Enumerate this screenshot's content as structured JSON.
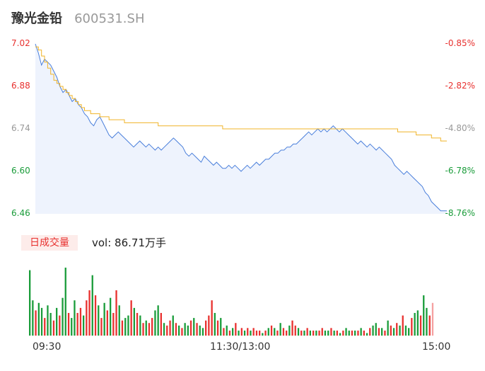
{
  "header": {
    "name": "豫光金铅",
    "code": "600531.SH"
  },
  "volume_tag": "日成交量",
  "volume_text": "vol: 86.71万手",
  "colors": {
    "up": "#e8312f",
    "down": "#1a9c3a",
    "flat": "#999999",
    "price_line": "#4a7fdb",
    "avg_line": "#f0b429",
    "price_fill": "#eef3fd"
  },
  "chart_data": [
    {
      "type": "line",
      "title": "",
      "y_left_ticks": [
        "7.02",
        "6.88",
        "6.74",
        "6.60",
        "6.46"
      ],
      "y_right_ticks": [
        "-0.85%",
        "-2.82%",
        "-4.80%",
        "-6.78%",
        "-8.76%"
      ],
      "ylim": [
        6.46,
        7.02
      ],
      "x_ticks": [
        "09:30",
        "11:30/13:00",
        "15:00"
      ],
      "series": [
        {
          "values": [
            7.02,
            6.99,
            6.95,
            6.97,
            6.96,
            6.95,
            6.93,
            6.91,
            6.88,
            6.86,
            6.87,
            6.85,
            6.83,
            6.84,
            6.82,
            6.81,
            6.79,
            6.78,
            6.76,
            6.75,
            6.77,
            6.78,
            6.76,
            6.74,
            6.72,
            6.71,
            6.72,
            6.73,
            6.72,
            6.71,
            6.7,
            6.69,
            6.68,
            6.69,
            6.7,
            6.69,
            6.68,
            6.69,
            6.68,
            6.67,
            6.68,
            6.67,
            6.68,
            6.69,
            6.7,
            6.71,
            6.7,
            6.69,
            6.68,
            6.66,
            6.65,
            6.66,
            6.65,
            6.64,
            6.63,
            6.65,
            6.64,
            6.63,
            6.62,
            6.63,
            6.62,
            6.61,
            6.61,
            6.62,
            6.61,
            6.62,
            6.61,
            6.6,
            6.61,
            6.62,
            6.61,
            6.62,
            6.63,
            6.62,
            6.63,
            6.64,
            6.64,
            6.65,
            6.66,
            6.66,
            6.67,
            6.67,
            6.68,
            6.68,
            6.69,
            6.69,
            6.7,
            6.71,
            6.72,
            6.73,
            6.72,
            6.73,
            6.74,
            6.73,
            6.74,
            6.73,
            6.74,
            6.75,
            6.74,
            6.73,
            6.74,
            6.73,
            6.72,
            6.71,
            6.7,
            6.69,
            6.7,
            6.69,
            6.68,
            6.69,
            6.68,
            6.67,
            6.68,
            6.67,
            6.66,
            6.65,
            6.64,
            6.62,
            6.61,
            6.6,
            6.59,
            6.6,
            6.59,
            6.58,
            6.57,
            6.56,
            6.55,
            6.53,
            6.52,
            6.5,
            6.49,
            6.48,
            6.47,
            6.47,
            6.47
          ]
        },
        {
          "values": [
            7.01,
            7.0,
            6.98,
            6.96,
            6.94,
            6.92,
            6.9,
            6.89,
            6.88,
            6.87,
            6.86,
            6.85,
            6.84,
            6.83,
            6.82,
            6.81,
            6.8,
            6.8,
            6.79,
            6.79,
            6.79,
            6.78,
            6.78,
            6.78,
            6.77,
            6.77,
            6.77,
            6.77,
            6.77,
            6.76,
            6.76,
            6.76,
            6.76,
            6.76,
            6.76,
            6.76,
            6.76,
            6.76,
            6.76,
            6.76,
            6.75,
            6.75,
            6.75,
            6.75,
            6.75,
            6.75,
            6.75,
            6.75,
            6.75,
            6.75,
            6.75,
            6.75,
            6.75,
            6.75,
            6.75,
            6.75,
            6.75,
            6.75,
            6.75,
            6.75,
            6.75,
            6.74,
            6.74,
            6.74,
            6.74,
            6.74,
            6.74,
            6.74,
            6.74,
            6.74,
            6.74,
            6.74,
            6.74,
            6.74,
            6.74,
            6.74,
            6.74,
            6.74,
            6.74,
            6.74,
            6.74,
            6.74,
            6.74,
            6.74,
            6.74,
            6.74,
            6.74,
            6.74,
            6.74,
            6.74,
            6.74,
            6.74,
            6.74,
            6.74,
            6.74,
            6.74,
            6.74,
            6.74,
            6.74,
            6.74,
            6.74,
            6.74,
            6.74,
            6.74,
            6.74,
            6.74,
            6.74,
            6.74,
            6.74,
            6.74,
            6.74,
            6.74,
            6.74,
            6.74,
            6.74,
            6.74,
            6.74,
            6.74,
            6.73,
            6.73,
            6.73,
            6.73,
            6.73,
            6.73,
            6.72,
            6.72,
            6.72,
            6.72,
            6.72,
            6.71,
            6.71,
            6.71,
            6.7,
            6.7,
            6.7
          ]
        }
      ]
    },
    {
      "type": "bar",
      "title": "",
      "values": [
        2.6,
        1.4,
        1.0,
        1.3,
        1.1,
        0.7,
        1.2,
        0.9,
        0.6,
        1.1,
        0.8,
        1.5,
        2.7,
        0.9,
        0.7,
        1.4,
        0.9,
        1.1,
        0.8,
        1.4,
        1.8,
        2.4,
        1.6,
        1.2,
        0.7,
        1.3,
        1.0,
        1.5,
        0.9,
        1.8,
        1.2,
        0.6,
        0.7,
        0.8,
        1.4,
        1.1,
        0.9,
        0.8,
        0.5,
        0.6,
        0.5,
        0.7,
        1.0,
        1.2,
        0.9,
        0.5,
        0.4,
        0.6,
        0.8,
        0.5,
        0.4,
        0.3,
        0.5,
        0.4,
        0.6,
        0.7,
        0.5,
        0.4,
        0.3,
        0.6,
        0.8,
        1.4,
        0.9,
        0.6,
        0.7,
        0.3,
        0.4,
        0.2,
        0.3,
        0.5,
        0.2,
        0.3,
        0.2,
        0.3,
        0.2,
        0.3,
        0.2,
        0.2,
        0.1,
        0.2,
        0.3,
        0.4,
        0.3,
        0.2,
        0.5,
        0.3,
        0.2,
        0.4,
        0.6,
        0.4,
        0.3,
        0.2,
        0.2,
        0.3,
        0.2,
        0.2,
        0.2,
        0.2,
        0.3,
        0.2,
        0.2,
        0.3,
        0.2,
        0.2,
        0.1,
        0.2,
        0.3,
        0.2,
        0.2,
        0.2,
        0.2,
        0.3,
        0.2,
        0.1,
        0.3,
        0.4,
        0.5,
        0.3,
        0.3,
        0.2,
        0.6,
        0.4,
        0.3,
        0.5,
        0.4,
        0.8,
        0.4,
        0.3,
        0.7,
        0.9,
        1.0,
        0.8,
        1.6,
        1.1,
        0.8,
        1.3
      ],
      "directions": [
        "d",
        "d",
        "u",
        "d",
        "d",
        "u",
        "d",
        "d",
        "u",
        "d",
        "u",
        "d",
        "d",
        "u",
        "d",
        "d",
        "u",
        "u",
        "d",
        "u",
        "u",
        "d",
        "u",
        "d",
        "u",
        "d",
        "u",
        "d",
        "u",
        "u",
        "d",
        "u",
        "d",
        "d",
        "u",
        "d",
        "u",
        "d",
        "u",
        "d",
        "u",
        "u",
        "d",
        "d",
        "u",
        "d",
        "u",
        "u",
        "d",
        "u",
        "d",
        "u",
        "d",
        "d",
        "u",
        "d",
        "u",
        "d",
        "d",
        "u",
        "u",
        "u",
        "d",
        "u",
        "d",
        "u",
        "d",
        "u",
        "d",
        "u",
        "d",
        "u",
        "d",
        "u",
        "d",
        "u",
        "u",
        "u",
        "d",
        "u",
        "d",
        "u",
        "d",
        "u",
        "d",
        "u",
        "u",
        "d",
        "u",
        "u",
        "d",
        "u",
        "d",
        "u",
        "d",
        "u",
        "d",
        "u",
        "u",
        "d",
        "d",
        "u",
        "d",
        "u",
        "d",
        "u",
        "d",
        "d",
        "u",
        "d",
        "u",
        "d",
        "u",
        "d",
        "u",
        "d",
        "d",
        "u",
        "d",
        "u",
        "d",
        "u",
        "d",
        "u",
        "d",
        "u",
        "d",
        "d",
        "u",
        "d",
        "d",
        "u",
        "d",
        "d",
        "u",
        "f"
      ],
      "legend": "none"
    }
  ]
}
